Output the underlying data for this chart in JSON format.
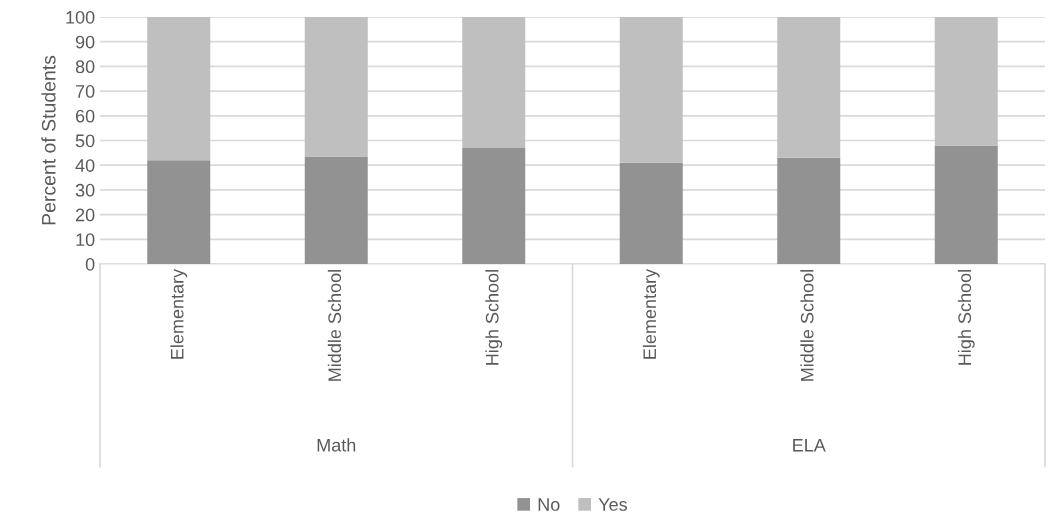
{
  "chart_data": {
    "type": "bar",
    "stacked": true,
    "ylabel": "Percent of Students",
    "categories": [
      "Elementary",
      "Middle School",
      "High School",
      "Elementary",
      "Middle School",
      "High School"
    ],
    "series": [
      {
        "name": "No",
        "color": "#929292",
        "values": [
          42,
          43.5,
          47,
          41,
          43,
          48
        ]
      },
      {
        "name": "Yes",
        "color": "#bfbfbf",
        "values": [
          58,
          56.5,
          53,
          59,
          57,
          52
        ]
      }
    ],
    "annotations": [
      "Math",
      "ELA"
    ],
    "ylim": [
      0,
      100
    ],
    "yticks": [
      0,
      10,
      20,
      30,
      40,
      50,
      60,
      70,
      80,
      90,
      100
    ],
    "grid": "y",
    "legend": "bottom"
  }
}
